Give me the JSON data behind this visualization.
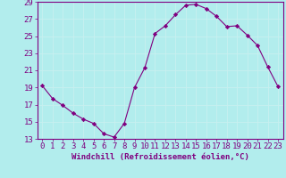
{
  "x": [
    0,
    1,
    2,
    3,
    4,
    5,
    6,
    7,
    8,
    9,
    10,
    11,
    12,
    13,
    14,
    15,
    16,
    17,
    18,
    19,
    20,
    21,
    22,
    23
  ],
  "y": [
    19.2,
    17.7,
    16.9,
    16.0,
    15.3,
    14.8,
    13.6,
    13.2,
    14.8,
    19.0,
    21.3,
    25.3,
    26.2,
    27.5,
    28.6,
    28.7,
    28.2,
    27.3,
    26.1,
    26.2,
    25.1,
    23.9,
    21.4,
    19.1
  ],
  "line_color": "#800080",
  "marker": "D",
  "marker_size": 2.2,
  "bg_color": "#b2eded",
  "grid_color": "#c8f0f0",
  "xlabel": "Windchill (Refroidissement éolien,°C)",
  "ylabel": "",
  "ylim": [
    13,
    29
  ],
  "xlim": [
    -0.5,
    23.5
  ],
  "yticks": [
    13,
    15,
    17,
    19,
    21,
    23,
    25,
    27,
    29
  ],
  "xticks": [
    0,
    1,
    2,
    3,
    4,
    5,
    6,
    7,
    8,
    9,
    10,
    11,
    12,
    13,
    14,
    15,
    16,
    17,
    18,
    19,
    20,
    21,
    22,
    23
  ],
  "xlabel_fontsize": 6.5,
  "tick_fontsize": 6.5,
  "tick_color": "#800080",
  "axis_color": "#800080",
  "spine_color": "#800080"
}
